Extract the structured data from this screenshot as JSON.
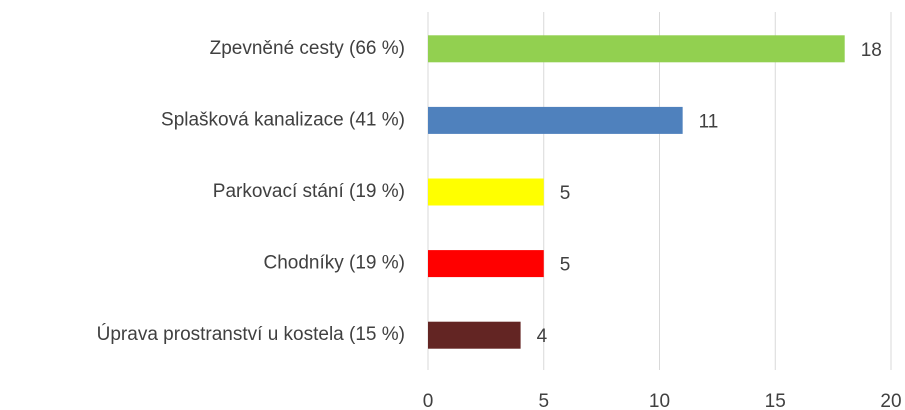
{
  "chart_data": {
    "type": "bar",
    "orientation": "horizontal",
    "categories": [
      "Zpevněné cesty (66 %)",
      "Splašková kanalizace (41 %)",
      "Parkovací stání (19 %)",
      "Chodníky (19 %)",
      "Úprava prostranství u kostela (15 %)"
    ],
    "values": [
      18,
      11,
      5,
      5,
      4
    ],
    "colors": [
      "#92d050",
      "#4f81bd",
      "#ffff00",
      "#ff0000",
      "#632523"
    ],
    "xlim": [
      0,
      20
    ],
    "xticks": [
      0,
      5,
      10,
      15,
      20
    ],
    "grid": true,
    "data_labels": true
  }
}
